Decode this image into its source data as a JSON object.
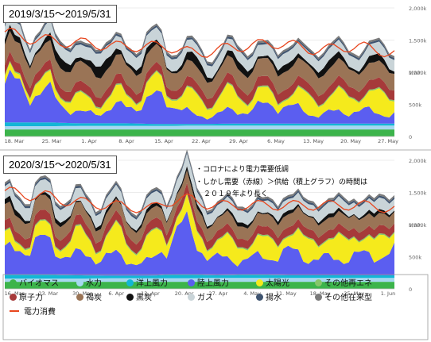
{
  "panels": [
    {
      "title": "2019/3/15～2019/5/31",
      "y_unit": "MWh",
      "y_ticks": [
        "0",
        "500k",
        "1,000k",
        "1,500k",
        "2,000k"
      ],
      "x_ticks": [
        "18. Mar",
        "25. Mar",
        "1. Apr",
        "8. Apr",
        "15. Apr",
        "22. Apr",
        "29. Apr",
        "6. May",
        "13. May",
        "20. May",
        "27. May"
      ]
    },
    {
      "title": "2020/3/15～2020/5/31",
      "y_unit": "MWh",
      "y_ticks": [
        "0",
        "500k",
        "1,000k",
        "1,500k",
        "2,000k"
      ],
      "x_ticks": [
        "16. Mar",
        "23. Mar",
        "30. Mar",
        "6. Apr",
        "13. Apr",
        "20. Apr",
        "27. Apr",
        "4. May",
        "11. May",
        "18. May",
        "25. May",
        "1. Jun"
      ]
    }
  ],
  "notes": [
    "・コロナにより電力需要低調",
    "・しかし需要（赤線）＞供給（積上グラフ）の時間は",
    "２０１９年より長く"
  ],
  "legend": [
    {
      "label": "バイオマス",
      "color": "#3cb44b",
      "shape": "dot"
    },
    {
      "label": "水力",
      "color": "#a6d8f0",
      "shape": "dot"
    },
    {
      "label": "洋上風力",
      "color": "#13b6d6",
      "shape": "dot"
    },
    {
      "label": "陸上風力",
      "color": "#5b5ef0",
      "shape": "dot"
    },
    {
      "label": "太陽光",
      "color": "#f5ea1c",
      "shape": "dot"
    },
    {
      "label": "その他再エネ",
      "color": "#86c66a",
      "shape": "dot"
    },
    {
      "label": "原子力",
      "color": "#a63a3a",
      "shape": "dot"
    },
    {
      "label": "褐炭",
      "color": "#9a7456",
      "shape": "dot"
    },
    {
      "label": "黒炭",
      "color": "#111111",
      "shape": "dot"
    },
    {
      "label": "ガス",
      "color": "#c9d4d8",
      "shape": "dot"
    },
    {
      "label": "揚水",
      "color": "#3f5470",
      "shape": "dot"
    },
    {
      "label": "その他在来型",
      "color": "#7a7a7a",
      "shape": "dot"
    },
    {
      "label": "電力消費",
      "color": "#e8461e",
      "shape": "line"
    }
  ],
  "chart_data": [
    {
      "type": "area",
      "title": "2019/3/15～2019/5/31",
      "ylabel": "MWh",
      "ylim": [
        0,
        2000000
      ],
      "x": [
        "18. Mar",
        "25. Mar",
        "1. Apr",
        "8. Apr",
        "15. Apr",
        "22. Apr",
        "29. Apr",
        "6. May",
        "13. May",
        "20. May",
        "27. May"
      ],
      "stack_order": [
        "バイオマス",
        "水力",
        "洋上風力",
        "陸上風力",
        "太陽光",
        "その他再エネ",
        "原子力",
        "褐炭",
        "黒炭",
        "ガス",
        "揚水",
        "その他在来型"
      ],
      "series": [
        {
          "name": "バイオマス",
          "values": [
            110000,
            110000,
            110000,
            110000,
            110000,
            110000,
            110000,
            110000,
            110000,
            110000,
            110000
          ]
        },
        {
          "name": "水力",
          "values": [
            50000,
            50000,
            55000,
            55000,
            55000,
            60000,
            60000,
            60000,
            60000,
            60000,
            60000
          ]
        },
        {
          "name": "洋上風力",
          "values": [
            60000,
            60000,
            40000,
            40000,
            30000,
            25000,
            30000,
            30000,
            30000,
            30000,
            30000
          ]
        },
        {
          "name": "陸上風力",
          "values": [
            600000,
            450000,
            150000,
            250000,
            400000,
            120000,
            200000,
            300000,
            150000,
            200000,
            150000
          ]
        },
        {
          "name": "太陽光",
          "values": [
            80000,
            150000,
            200000,
            180000,
            200000,
            250000,
            250000,
            150000,
            250000,
            250000,
            280000
          ]
        },
        {
          "name": "その他再エネ",
          "values": [
            20000,
            20000,
            20000,
            20000,
            20000,
            20000,
            20000,
            20000,
            20000,
            20000,
            20000
          ]
        },
        {
          "name": "原子力",
          "values": [
            150000,
            150000,
            150000,
            150000,
            130000,
            150000,
            150000,
            150000,
            150000,
            150000,
            150000
          ]
        },
        {
          "name": "褐炭",
          "values": [
            320000,
            300000,
            310000,
            300000,
            280000,
            250000,
            270000,
            280000,
            280000,
            270000,
            260000
          ]
        },
        {
          "name": "黒炭",
          "values": [
            60000,
            90000,
            130000,
            110000,
            50000,
            100000,
            80000,
            70000,
            90000,
            80000,
            70000
          ]
        },
        {
          "name": "ガス",
          "values": [
            200000,
            200000,
            200000,
            200000,
            190000,
            190000,
            180000,
            180000,
            180000,
            180000,
            180000
          ]
        },
        {
          "name": "揚水",
          "values": [
            30000,
            30000,
            30000,
            30000,
            30000,
            30000,
            30000,
            30000,
            30000,
            30000,
            30000
          ]
        },
        {
          "name": "その他在来型",
          "values": [
            30000,
            30000,
            30000,
            30000,
            30000,
            30000,
            30000,
            30000,
            30000,
            30000,
            30000
          ]
        },
        {
          "name": "電力消費",
          "type": "line",
          "values": [
            1600000,
            1500000,
            1450000,
            1400000,
            1400000,
            1300000,
            1400000,
            1450000,
            1350000,
            1400000,
            1300000
          ]
        }
      ]
    },
    {
      "type": "area",
      "title": "2020/3/15～2020/5/31",
      "ylabel": "MWh",
      "ylim": [
        0,
        2000000
      ],
      "x": [
        "16. Mar",
        "23. Mar",
        "30. Mar",
        "6. Apr",
        "13. Apr",
        "20. Apr",
        "27. Apr",
        "4. May",
        "11. May",
        "18. May",
        "25. May",
        "1. Jun"
      ],
      "stack_order": [
        "バイオマス",
        "水力",
        "洋上風力",
        "陸上風力",
        "太陽光",
        "その他再エネ",
        "原子力",
        "褐炭",
        "黒炭",
        "ガス",
        "揚水",
        "その他在来型"
      ],
      "series": [
        {
          "name": "バイオマス",
          "values": [
            110000,
            110000,
            110000,
            110000,
            110000,
            110000,
            110000,
            110000,
            110000,
            110000,
            110000,
            110000
          ]
        },
        {
          "name": "水力",
          "values": [
            50000,
            50000,
            50000,
            55000,
            55000,
            55000,
            60000,
            60000,
            60000,
            60000,
            60000,
            60000
          ]
        },
        {
          "name": "洋上風力",
          "values": [
            60000,
            60000,
            50000,
            40000,
            40000,
            60000,
            40000,
            50000,
            40000,
            40000,
            40000,
            40000
          ]
        },
        {
          "name": "陸上風力",
          "values": [
            350000,
            500000,
            300000,
            300000,
            200000,
            700000,
            250000,
            250000,
            350000,
            250000,
            300000,
            350000
          ]
        },
        {
          "name": "太陽光",
          "values": [
            150000,
            150000,
            250000,
            300000,
            300000,
            200000,
            250000,
            250000,
            250000,
            300000,
            280000,
            250000
          ]
        },
        {
          "name": "その他再エネ",
          "values": [
            20000,
            20000,
            20000,
            20000,
            20000,
            20000,
            20000,
            20000,
            20000,
            20000,
            20000,
            20000
          ]
        },
        {
          "name": "原子力",
          "values": [
            150000,
            150000,
            150000,
            150000,
            150000,
            150000,
            130000,
            130000,
            130000,
            130000,
            130000,
            130000
          ]
        },
        {
          "name": "褐炭",
          "values": [
            250000,
            230000,
            200000,
            180000,
            180000,
            200000,
            200000,
            190000,
            200000,
            190000,
            200000,
            180000
          ]
        },
        {
          "name": "黒炭",
          "values": [
            60000,
            50000,
            40000,
            40000,
            40000,
            50000,
            40000,
            40000,
            40000,
            40000,
            40000,
            40000
          ]
        },
        {
          "name": "ガス",
          "values": [
            200000,
            200000,
            200000,
            180000,
            170000,
            200000,
            180000,
            190000,
            180000,
            180000,
            180000,
            180000
          ]
        },
        {
          "name": "揚水",
          "values": [
            30000,
            30000,
            30000,
            30000,
            30000,
            30000,
            30000,
            30000,
            30000,
            30000,
            30000,
            30000
          ]
        },
        {
          "name": "その他在来型",
          "values": [
            30000,
            30000,
            30000,
            30000,
            30000,
            30000,
            30000,
            30000,
            30000,
            30000,
            30000,
            30000
          ]
        },
        {
          "name": "電力消費",
          "type": "line",
          "values": [
            1500000,
            1450000,
            1350000,
            1300000,
            1250000,
            1400000,
            1300000,
            1300000,
            1300000,
            1300000,
            1300000,
            1250000
          ]
        }
      ]
    }
  ]
}
